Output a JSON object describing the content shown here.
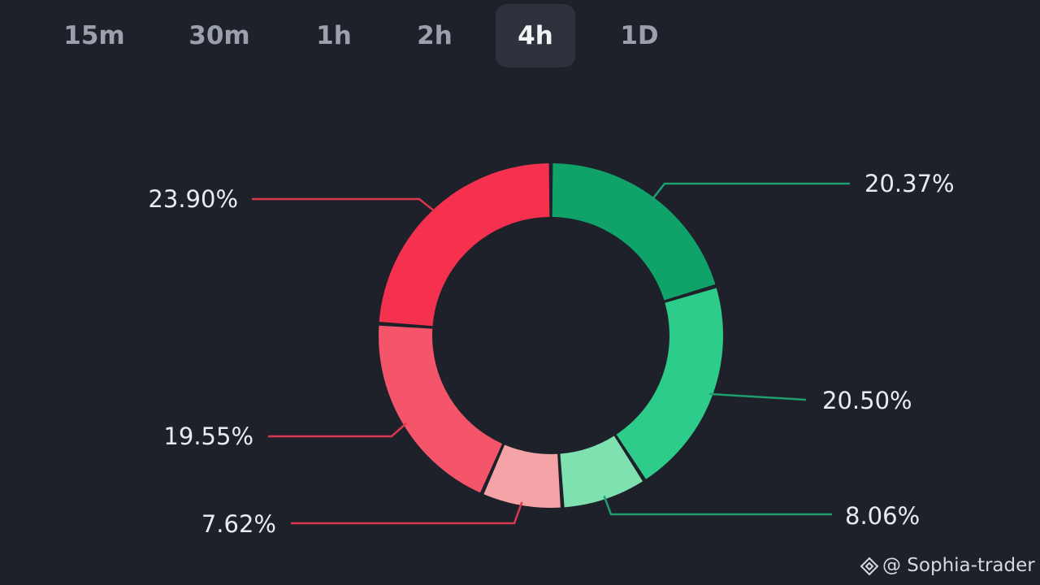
{
  "timeframes": {
    "items": [
      {
        "label": "15m",
        "active": false
      },
      {
        "label": "30m",
        "active": false
      },
      {
        "label": "1h",
        "active": false
      },
      {
        "label": "2h",
        "active": false
      },
      {
        "label": "4h",
        "active": true
      },
      {
        "label": "1D",
        "active": false
      }
    ]
  },
  "chart_data": {
    "type": "pie",
    "donut": true,
    "title": "",
    "legend": "none",
    "slices": [
      {
        "value": 20.37,
        "label": "20.37%",
        "color": "#0fa36a"
      },
      {
        "value": 20.5,
        "label": "20.50%",
        "color": "#2dcc8a"
      },
      {
        "value": 8.06,
        "label": "8.06%",
        "color": "#7fe0b0"
      },
      {
        "value": 7.62,
        "label": "7.62%",
        "color": "#f5a3a7"
      },
      {
        "value": 19.55,
        "label": "19.55%",
        "color": "#f5556b"
      },
      {
        "value": 23.9,
        "label": "23.90%",
        "color": "#f63150"
      }
    ]
  },
  "colors": {
    "background": "#1e2129",
    "active_tab_bg": "#2d323d",
    "leader_green": "#1f9e6e",
    "leader_red": "#d9384e"
  },
  "watermark": {
    "text": "@ Sophia-trader",
    "icon": "binance-square-icon"
  }
}
